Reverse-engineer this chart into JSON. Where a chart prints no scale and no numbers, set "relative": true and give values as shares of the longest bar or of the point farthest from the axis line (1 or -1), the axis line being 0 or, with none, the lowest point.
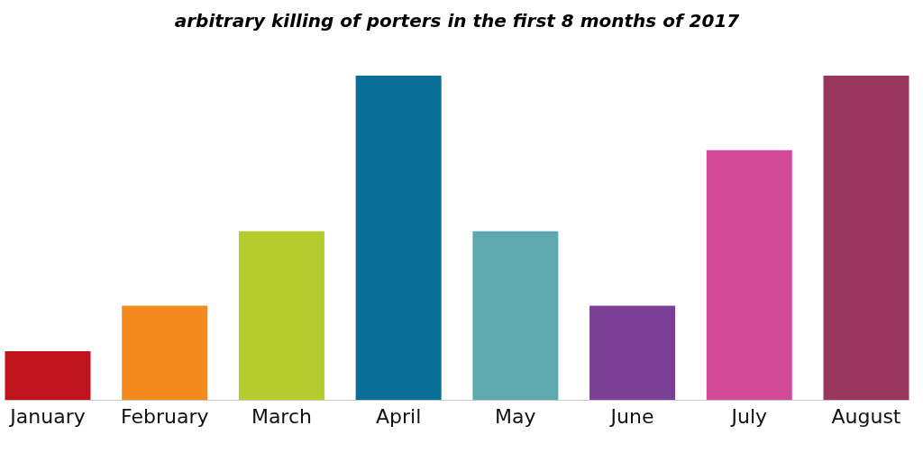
{
  "chart_data": {
    "type": "bar",
    "title": "arbitrary killing of porters in  the first 8 months of 2017",
    "relative": true,
    "categories": [
      "January",
      "February",
      "March",
      "April",
      "May",
      "June",
      "July",
      "August"
    ],
    "values": [
      0.15,
      0.29,
      0.52,
      1,
      0.52,
      0.29,
      0.77,
      1
    ],
    "colors": [
      "#c0141c",
      "#f28a1e",
      "#b5cc2e",
      "#0a6f96",
      "#5fa8b0",
      "#7b3f96",
      "#d24a9a",
      "#9a3560"
    ],
    "grid": false,
    "legend": false
  }
}
